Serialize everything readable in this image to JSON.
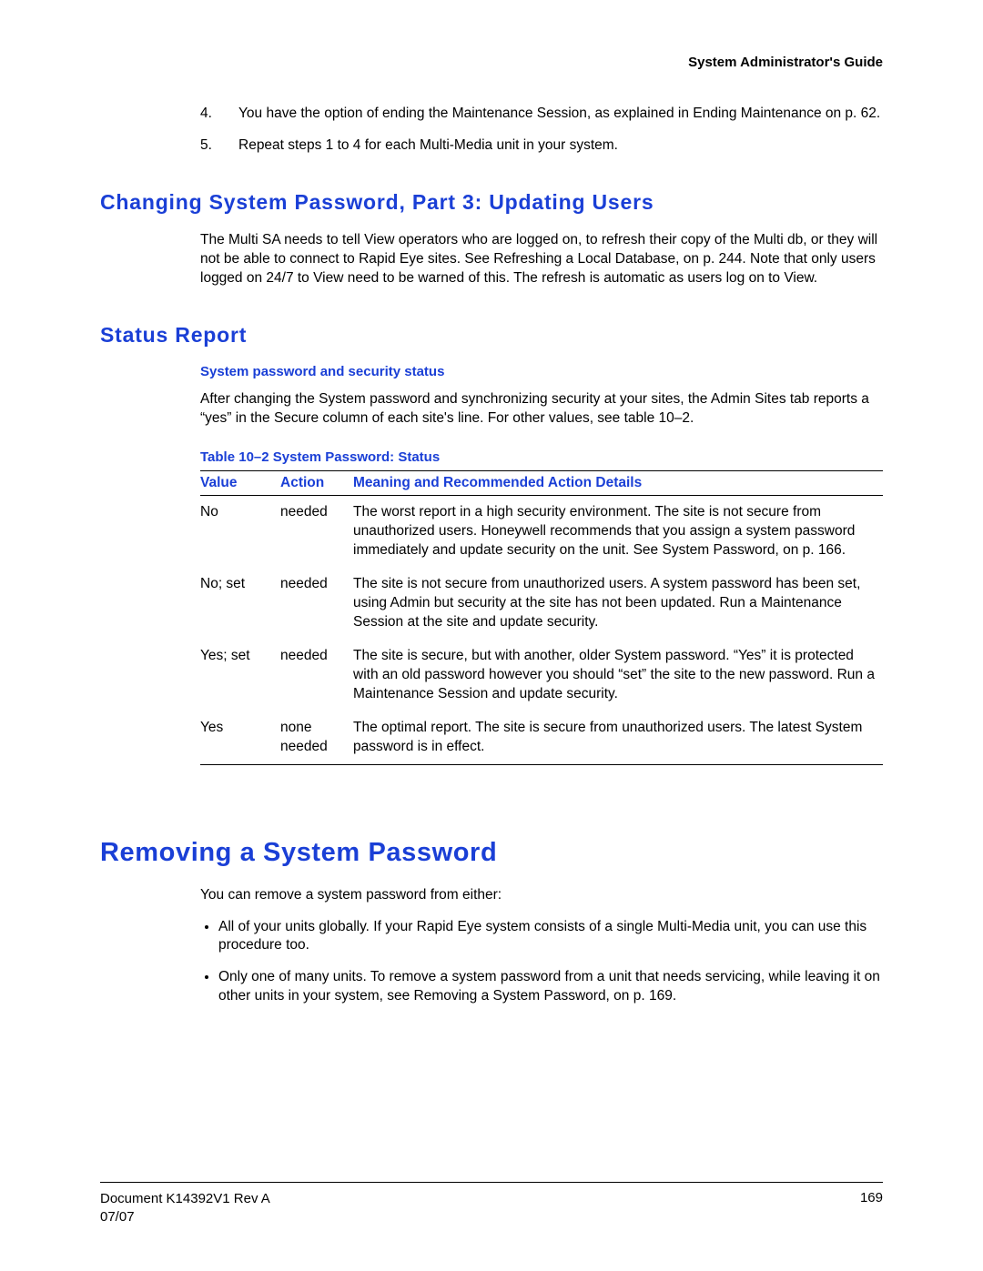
{
  "header": {
    "guide_title": "System Administrator's Guide"
  },
  "ordered_steps": [
    {
      "num": "4.",
      "text": "You have the option of ending the Maintenance Session, as explained in Ending Maintenance on p. 62."
    },
    {
      "num": "5.",
      "text": "Repeat steps 1 to 4 for each Multi-Media unit in your system."
    }
  ],
  "section1": {
    "heading": "Changing System Password, Part 3: Updating Users",
    "body": "The Multi SA needs to tell View operators who are logged on, to refresh their copy of the Multi db, or they will not be able to connect to Rapid Eye sites. See Refreshing a Local Database, on p. 244. Note that only users logged on 24/7 to View need to be warned of this. The refresh is automatic as users log on to View."
  },
  "section2": {
    "heading": "Status Report",
    "sub_heading": "System password and security status",
    "body": "After changing the System password and synchronizing security at your sites, the Admin Sites tab reports a “yes” in the Secure column of each site's line. For other values, see table 10–2.",
    "table_caption": "Table 10–2  System Password: Status",
    "table": {
      "headers": {
        "c1": "Value",
        "c2": "Action",
        "c3": "Meaning and Recommended Action Details"
      },
      "rows": [
        {
          "value": "No",
          "action": "needed",
          "meaning": "The worst report in a high security environment. The site is not secure from unauthorized users.  Honeywell recommends that you assign a system password immediately and update security on the unit. See System Password, on p. 166."
        },
        {
          "value": "No; set",
          "action": "needed",
          "meaning": "The site is not secure from unauthorized users. A system password has been set, using Admin but security at the site has not been updated. Run a Maintenance Session at the site and update security."
        },
        {
          "value": "Yes; set",
          "action": "needed",
          "meaning": "The site is secure, but with another, older System password. “Yes” it is protected with an old password however you should “set” the site to the new password. Run a Maintenance Session and update security."
        },
        {
          "value": "Yes",
          "action": "none needed",
          "meaning": "The optimal report. The site is secure from unauthorized users. The latest System password is in effect."
        }
      ]
    }
  },
  "section3": {
    "heading": "Removing a System Password",
    "intro": "You can remove a system password from either:",
    "bullets": [
      "All of your units globally. If your Rapid Eye system consists of a single Multi-Media unit, you can use this procedure too.",
      "Only one of many units. To remove a system password from a unit that needs servicing, while leaving it on other units in your system, see Removing a System Password, on p. 169."
    ]
  },
  "footer": {
    "doc_line1": "Document K14392V1 Rev A",
    "doc_line2": "07/07",
    "page_num": "169"
  }
}
